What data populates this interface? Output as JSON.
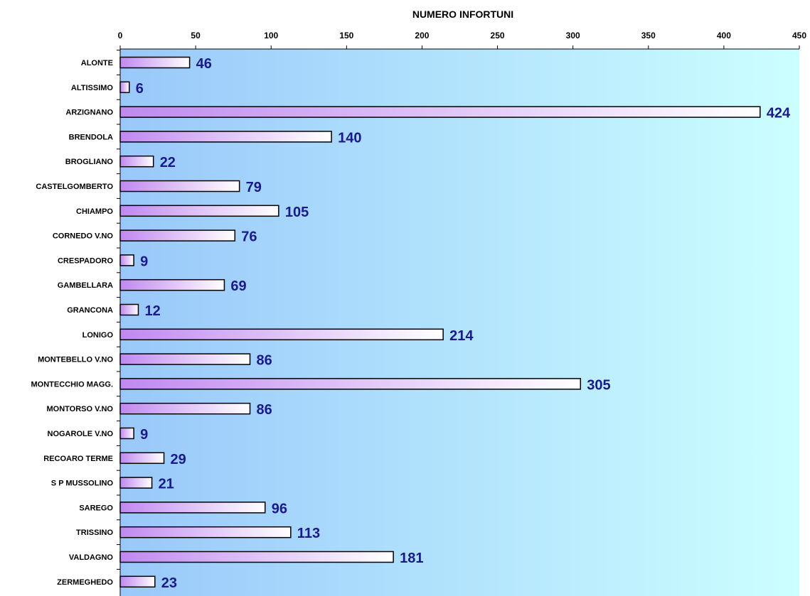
{
  "chart_data": {
    "type": "bar",
    "orientation": "horizontal",
    "title": "NUMERO INFORTUNI",
    "xlabel": "",
    "ylabel": "",
    "xlim": [
      0,
      450
    ],
    "ticks": [
      0,
      50,
      100,
      150,
      200,
      250,
      300,
      350,
      400,
      450
    ],
    "axis_position": "top",
    "grid": false,
    "legend": "none",
    "categories": [
      "ALONTE",
      "ALTISSIMO",
      "ARZIGNANO",
      "BRENDOLA",
      "BROGLIANO",
      "CASTELGOMBERTO",
      "CHIAMPO",
      "CORNEDO V.NO",
      "CRESPADORO",
      "GAMBELLARA",
      "GRANCONA",
      "LONIGO",
      "MONTEBELLO V.NO",
      "MONTECCHIO MAGG.",
      "MONTORSO V.NO",
      "NOGAROLE V.NO",
      "RECOARO TERME",
      "S P MUSSOLINO",
      "SAREGO",
      "TRISSINO",
      "VALDAGNO",
      "ZERMEGHEDO"
    ],
    "values": [
      46,
      6,
      424,
      140,
      22,
      79,
      105,
      76,
      9,
      69,
      12,
      214,
      86,
      305,
      86,
      9,
      29,
      21,
      96,
      113,
      181,
      23
    ],
    "colors": {
      "plot_bg_start": "#99c8fa",
      "plot_bg_end": "#ccffff",
      "bar_start": "#c088f0",
      "bar_end": "#ffffff",
      "bar_stroke": "#000000",
      "value_label": "#1a1a8a"
    }
  }
}
